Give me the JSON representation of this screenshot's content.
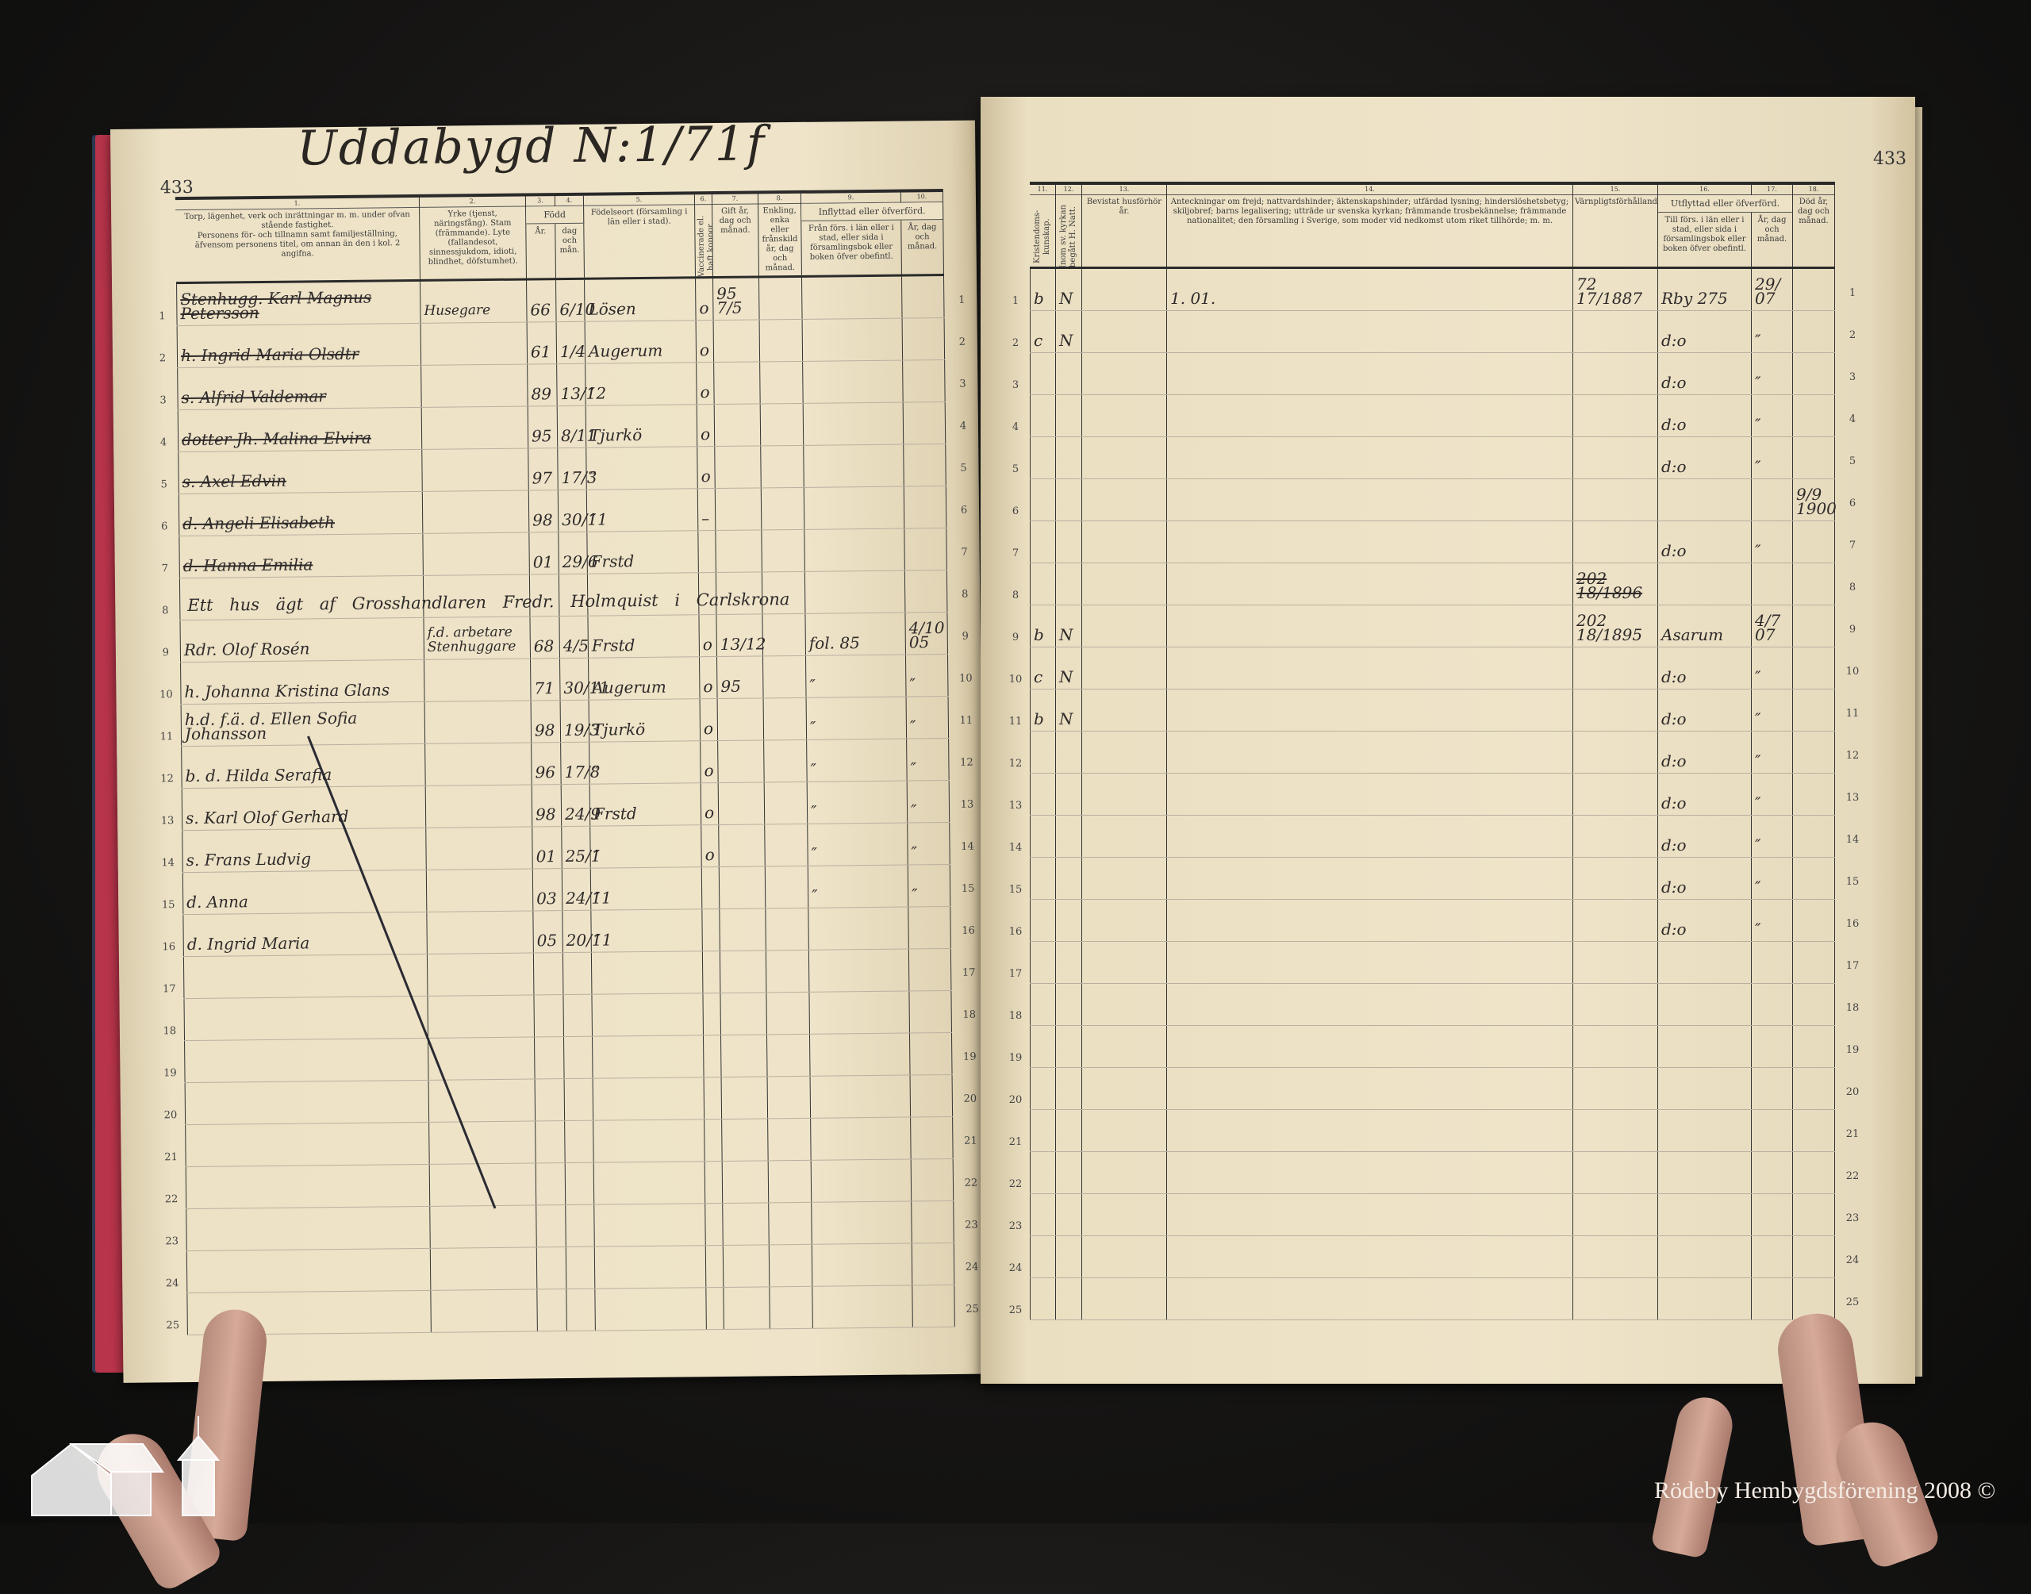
{
  "book": {
    "title": "Uddabygd N:1/71f",
    "page_number_left": "433",
    "page_number_right": "433",
    "watermark": "Rödeby Hembygdsförening 2008 ©"
  },
  "row_numbers": [
    "1",
    "2",
    "3",
    "4",
    "5",
    "6",
    "7",
    "8",
    "9",
    "10",
    "11",
    "12",
    "13",
    "14",
    "15",
    "16",
    "17",
    "18",
    "19",
    "20",
    "21",
    "22",
    "23",
    "24",
    "25"
  ],
  "left_header": [
    {
      "num": "1.",
      "text": "Torp, lägenhet, verk och inrättningar m. m. under ofvan stående fastighet.\nPersonens för- och tillnamn samt familjeställning, äfvensom personens titel, om annan än den i kol. 2 angifna."
    },
    {
      "num": "2.",
      "text": "Yrke (tjenst, näringsfång). Stam (främmande). Lyte (fallandesot, sinnessjukdom, idioti, blindhet, döfstumhet)."
    },
    {
      "num": "3.",
      "text": "År."
    },
    {
      "num": "4.",
      "text": "dag och mån."
    },
    {
      "num": "5.",
      "text": "Födelseort (församling i län eller i stad)."
    },
    {
      "num": "6.",
      "text": "Vaccinerade el. haft koppor."
    },
    {
      "num": "7.",
      "text": "Gift år, dag och månad."
    },
    {
      "num": "8.",
      "text": "Enkling, enka eller frånskild år, dag och månad."
    },
    {
      "num": "9.",
      "text": "Från förs. i län eller i stad, eller sida i församlingsbok eller boken öfver obefintl."
    },
    {
      "num": "10.",
      "text": "År, dag och månad."
    }
  ],
  "left_group_labels": {
    "fodd": "Född",
    "inflyttad": "Inflyttad eller öfverförd."
  },
  "left_rows": [
    {
      "struck": true,
      "cells": [
        "Stenhugg. Karl Magnus Petersson",
        "Husegare",
        "66",
        "6/10",
        "Lösen",
        "o",
        "95 7/5",
        "",
        "",
        ""
      ]
    },
    {
      "struck": true,
      "cells": [
        "h. Ingrid Maria Olsdtr",
        "",
        "61",
        "1/4",
        "Augerum",
        "o",
        "",
        "",
        "",
        ""
      ]
    },
    {
      "struck": true,
      "cells": [
        "s. Alfrid Valdemar",
        "",
        "89",
        "13/12",
        "″",
        "o",
        "",
        "",
        "",
        ""
      ]
    },
    {
      "struck": true,
      "cells": [
        "dotter Jh. Malina Elvira",
        "",
        "95",
        "8/11",
        "Tjurkö",
        "o",
        "",
        "",
        "",
        ""
      ]
    },
    {
      "struck": true,
      "cells": [
        "s. Axel Edvin",
        "",
        "97",
        "17/3",
        "″",
        "o",
        "",
        "",
        "",
        ""
      ]
    },
    {
      "struck": true,
      "cells": [
        "d. Angeli Elisabeth",
        "",
        "98",
        "30/11",
        "″",
        "–",
        "",
        "",
        "",
        ""
      ]
    },
    {
      "struck": true,
      "cells": [
        "d. Hanna Emilia",
        "",
        "01",
        "29/6",
        "Frstd",
        "",
        "",
        "",
        "",
        ""
      ]
    },
    {
      "struck": false,
      "span": "Ett hus ägt af Grosshandlaren Fredr. Holmquist i Carlskrona",
      "cells": [
        "",
        "",
        "",
        "",
        "",
        "",
        "",
        "",
        "",
        ""
      ]
    },
    {
      "struck": false,
      "cells": [
        "Rdr. Olof Rosén",
        "f.d. arbetare\nStenhuggare",
        "68",
        "4/5",
        "Frstd",
        "o",
        "13/12",
        "",
        "fol. 85",
        "4/10 05"
      ]
    },
    {
      "struck": false,
      "cells": [
        "h. Johanna Kristina Glans",
        "",
        "71",
        "30/11",
        "Augerum",
        "o",
        "95",
        "",
        "″",
        "″"
      ]
    },
    {
      "struck": false,
      "cells": [
        "h.d. f.ä. d. Ellen Sofia Johansson",
        "",
        "98",
        "19/3",
        "Tjurkö",
        "o",
        "",
        "",
        "″",
        "″"
      ]
    },
    {
      "struck": false,
      "cells": [
        "b. d. Hilda Serafia",
        "",
        "96",
        "17/8",
        "″",
        "o",
        "",
        "",
        "″",
        "″"
      ]
    },
    {
      "struck": false,
      "cells": [
        "s. Karl Olof Gerhard",
        "",
        "98",
        "24/9",
        "Frstd",
        "o",
        "",
        "",
        "″",
        "″"
      ]
    },
    {
      "struck": false,
      "cells": [
        "s. Frans Ludvig",
        "",
        "01",
        "25/1",
        "″",
        "o",
        "",
        "",
        "″",
        "″"
      ]
    },
    {
      "struck": false,
      "cells": [
        "d. Anna",
        "",
        "03",
        "24/11",
        "″",
        "",
        "",
        "",
        "″",
        "″"
      ]
    },
    {
      "struck": false,
      "cells": [
        "d. Ingrid Maria",
        "",
        "05",
        "20/11",
        "″",
        "",
        "",
        "",
        "",
        ""
      ]
    }
  ],
  "right_header": [
    {
      "num": "11.",
      "text": "Kristendoms-kunskap."
    },
    {
      "num": "12.",
      "text": "Inom sv. kyrkan begått H. Natt."
    },
    {
      "num": "13.",
      "text": "Bevistat husförhör år."
    },
    {
      "num": "14.",
      "text": "Anteckningar om frejd; nattvardshinder; äktenskapshinder; utfärdad lysning; hinderslöshetsbetyg; skiljobref; barns legalisering; utträde ur svenska kyrkan; främmande trosbekännelse; främmande nationalitet; den församling i Sverige, som moder vid nedkomst utom riket tillhörde; m. m."
    },
    {
      "num": "15.",
      "text": "Värnpligtsförhållanden."
    },
    {
      "num": "16.",
      "text": "Till förs. i län eller i stad, eller sida i församlingsbok eller boken öfver obefintl."
    },
    {
      "num": "17.",
      "text": "År, dag och månad."
    },
    {
      "num": "18.",
      "text": "Död år, dag och månad."
    }
  ],
  "right_group_labels": {
    "utflyttad": "Utflyttad eller öfverförd."
  },
  "right_rows": [
    {
      "cells": [
        "b",
        "N",
        "",
        "1. 01.",
        "72 17/1887",
        "Rby 275",
        "29/ 07",
        ""
      ]
    },
    {
      "cells": [
        "c",
        "N",
        "",
        "",
        "",
        "d:o",
        "″",
        ""
      ]
    },
    {
      "cells": [
        "",
        "",
        "",
        "",
        "",
        "d:o",
        "″",
        ""
      ]
    },
    {
      "cells": [
        "",
        "",
        "",
        "",
        "",
        "d:o",
        "″",
        ""
      ]
    },
    {
      "cells": [
        "",
        "",
        "",
        "",
        "",
        "d:o",
        "″",
        ""
      ]
    },
    {
      "cells": [
        "",
        "",
        "",
        "",
        "",
        "",
        "",
        "9/9 1900"
      ]
    },
    {
      "cells": [
        "",
        "",
        "",
        "",
        "",
        "d:o",
        "″",
        ""
      ]
    },
    {
      "cells": [
        "",
        "",
        "",
        "",
        "202 18/1896",
        "",
        "",
        ""
      ],
      "struck15": true
    },
    {
      "cells": [
        "b",
        "N",
        "",
        "",
        "202 18/1895",
        "Asarum",
        "4/7 07",
        ""
      ]
    },
    {
      "cells": [
        "c",
        "N",
        "",
        "",
        "",
        "d:o",
        "″",
        ""
      ]
    },
    {
      "cells": [
        "b",
        "N",
        "",
        "",
        "",
        "d:o",
        "″",
        ""
      ]
    },
    {
      "cells": [
        "",
        "",
        "",
        "",
        "",
        "d:o",
        "″",
        ""
      ]
    },
    {
      "cells": [
        "",
        "",
        "",
        "",
        "",
        "d:o",
        "″",
        ""
      ]
    },
    {
      "cells": [
        "",
        "",
        "",
        "",
        "",
        "d:o",
        "″",
        ""
      ]
    },
    {
      "cells": [
        "",
        "",
        "",
        "",
        "",
        "d:o",
        "″",
        ""
      ]
    },
    {
      "cells": [
        "",
        "",
        "",
        "",
        "",
        "d:o",
        "″",
        ""
      ]
    }
  ],
  "colors": {
    "paper": "#efe4c9",
    "ink": "#2e2a2a",
    "binding": "#b8344a",
    "background": "#161514"
  }
}
